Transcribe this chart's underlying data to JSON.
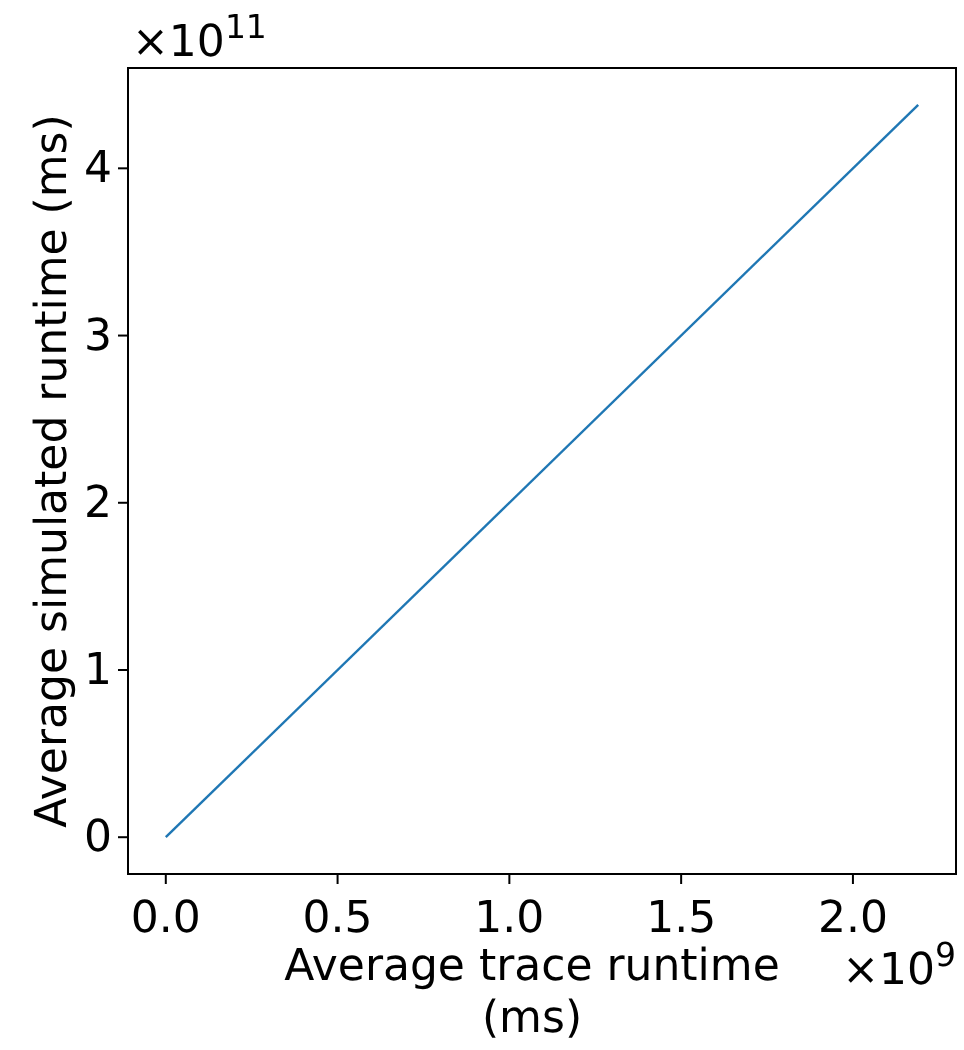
{
  "chart_data": {
    "type": "line",
    "xlabel": "Average trace runtime\n(ms)",
    "ylabel": "Average simulated runtime (ms)",
    "x": [
      0,
      2.19
    ],
    "series": [
      {
        "color": "#1f77b4",
        "values": [
          0,
          4.38
        ]
      }
    ],
    "xlim": [
      -0.11,
      2.3
    ],
    "xticks": [
      {
        "value": 0,
        "label": "0.0"
      },
      {
        "value": 0.5,
        "label": "0.5"
      },
      {
        "value": 1,
        "label": "1.0"
      },
      {
        "value": 1.5,
        "label": "1.5"
      },
      {
        "value": 2,
        "label": "2.0"
      }
    ],
    "ylim": [
      -0.22,
      4.6
    ],
    "yticks": [
      0,
      1,
      2,
      3,
      4
    ],
    "annotations": [
      "×10$^{9}$",
      "×10$^{11}$"
    ],
    "grid": false,
    "marker": "none",
    "line_style": "solid"
  }
}
